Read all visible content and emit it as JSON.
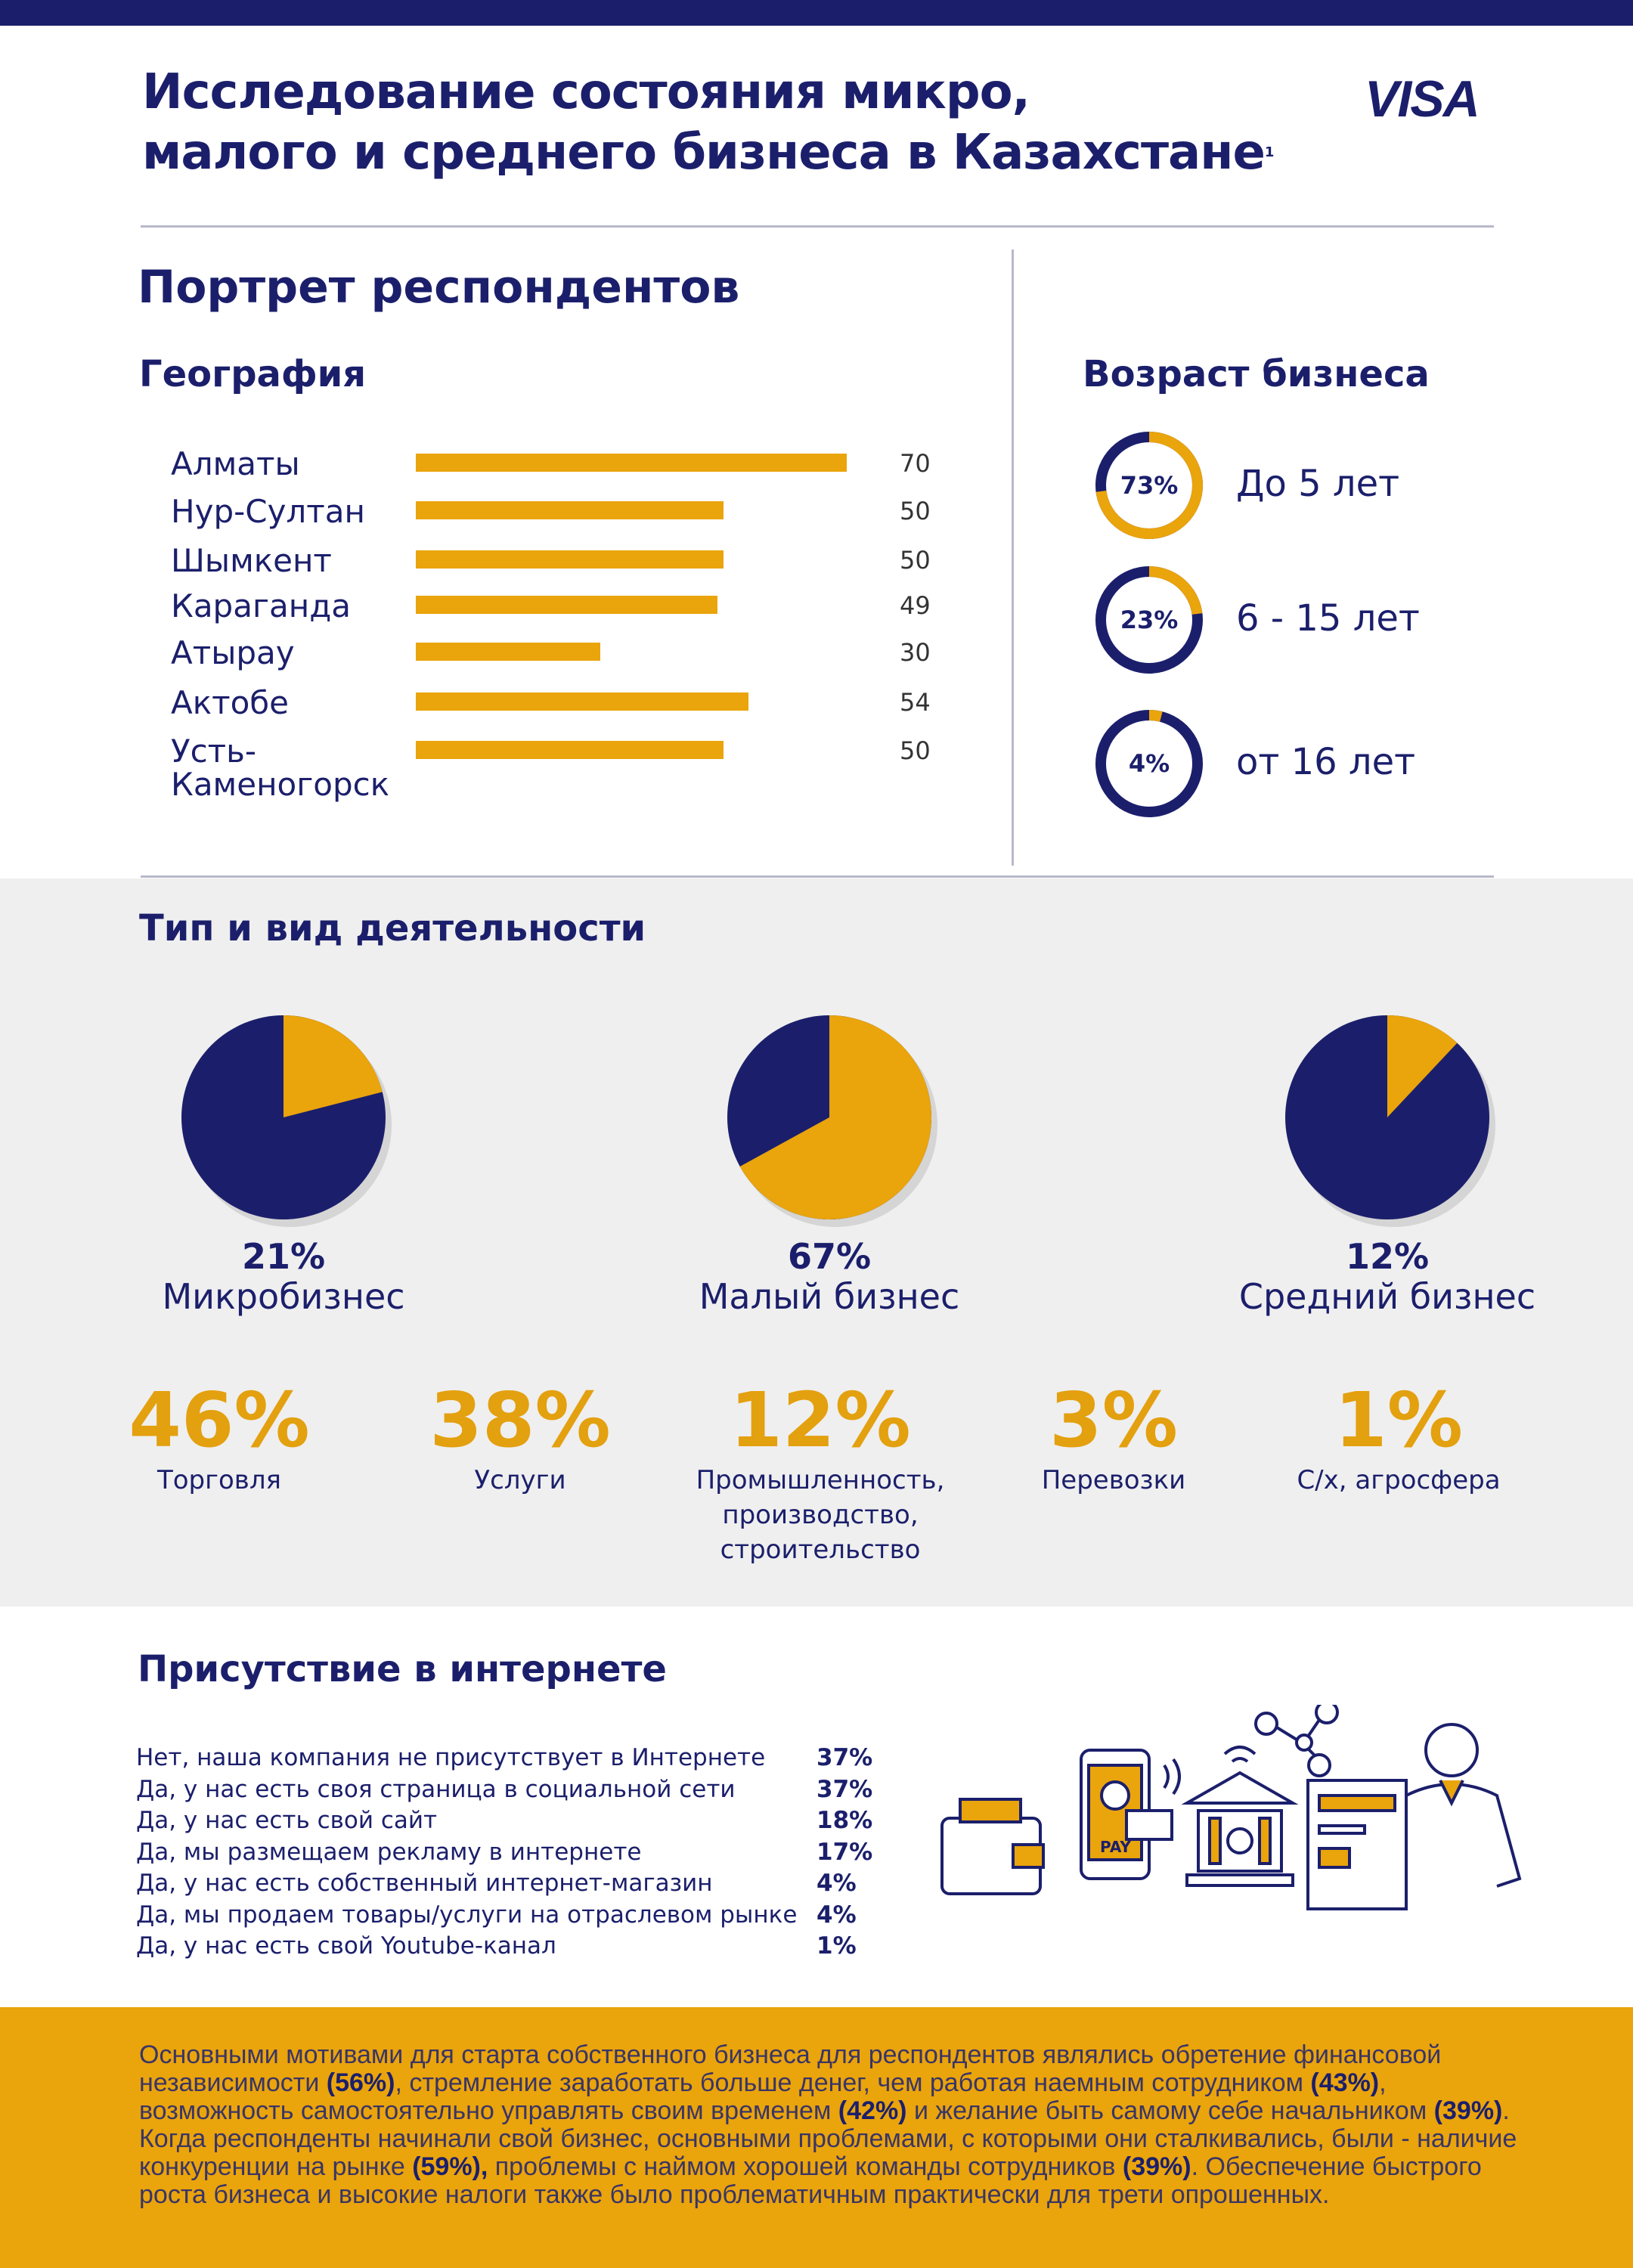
{
  "header": {
    "title_line1": "Исследование состояния микро,",
    "title_line2": "малого и среднего бизнеса в Казахстане",
    "footnote_mark": "1",
    "logo": "VISA"
  },
  "colors": {
    "navy": "#1b1f6b",
    "gold": "#eaa40c",
    "grey_bg": "#efefef"
  },
  "portrait": {
    "title": "Портрет респондентов"
  },
  "chart_data": [
    {
      "type": "bar",
      "title": "География",
      "orientation": "horizontal",
      "categories": [
        "Алматы",
        "Нур-Султан",
        "Шымкент",
        "Караганда",
        "Атырау",
        "Актобе",
        "Усть-Каменогорск"
      ],
      "category_lines": [
        [
          "Алматы"
        ],
        [
          "Нур-Султан"
        ],
        [
          "Шымкент"
        ],
        [
          "Караганда"
        ],
        [
          "Атырау"
        ],
        [
          "Актобе"
        ],
        [
          "Усть-",
          "Каменогорск"
        ]
      ],
      "values": [
        70,
        50,
        50,
        49,
        30,
        54,
        50
      ],
      "xlim": [
        0,
        70
      ]
    },
    {
      "type": "pie",
      "title": "Возраст бизнеса",
      "style": "donut",
      "categories": [
        "До 5 лет",
        "6 - 15 лет",
        "от 16 лет"
      ],
      "values": [
        73,
        23,
        4
      ],
      "labels": [
        "73%",
        "23%",
        "4%"
      ]
    },
    {
      "type": "pie",
      "title": "Тип и вид деятельности",
      "categories": [
        "Микробизнес",
        "Малый бизнес",
        "Средний бизнес"
      ],
      "values": [
        21,
        67,
        12
      ],
      "labels": [
        "21%",
        "67%",
        "12%"
      ]
    },
    {
      "type": "table",
      "categories": [
        "Торговля",
        "Услуги",
        "Промышленность, производство, строительство",
        "Перевозки",
        "С/х, агросфера"
      ],
      "category_lines": [
        [
          "Торговля"
        ],
        [
          "Услуги"
        ],
        [
          "Промышленность,",
          "производство,",
          "строительство"
        ],
        [
          "Перевозки"
        ],
        [
          "С/х, агросфера"
        ]
      ],
      "values": [
        46,
        38,
        12,
        3,
        1
      ],
      "labels": [
        "46%",
        "38%",
        "12%",
        "3%",
        "1%"
      ]
    },
    {
      "type": "table",
      "title": "Присутствие в интернете",
      "categories": [
        "Нет, наша компания не присутствует в Интернете",
        "Да, у нас есть своя страница в социальной сети",
        "Да, у нас есть свой сайт",
        "Да, мы размещаем рекламу в интернете",
        "Да, у нас есть собственный интернет-магазин",
        "Да, мы продаем товары/услуги на отраслевом рынке",
        "Да, у нас есть свой Youtube-канал"
      ],
      "values": [
        37,
        37,
        18,
        17,
        4,
        4,
        1
      ],
      "labels": [
        "37%",
        "37%",
        "18%",
        "17%",
        "4%",
        "4%",
        "1%"
      ]
    }
  ],
  "illustration": {
    "icons": [
      "wallet-icon",
      "smartphone-payment-icon",
      "bank-icon",
      "money-network-icon",
      "businessman-icon"
    ],
    "phone_text": "PAY"
  },
  "footer": {
    "parts": [
      {
        "t": "Основными мотивами для старта собственного бизнеса для респондентов являлись обретение финансовой независимости "
      },
      {
        "b": "(56%)"
      },
      {
        "t": ", стремление заработать больше денег, чем работая наемным сотрудником "
      },
      {
        "b": "(43%)"
      },
      {
        "t": ", возможность самостоятельно управлять своим временем "
      },
      {
        "b": "(42%)"
      },
      {
        "t": " и желание быть самому себе начальником "
      },
      {
        "b": "(39%)"
      },
      {
        "t": ". Когда респонденты начинали свой бизнес, основными проблемами, с которыми они сталкивались, были - наличие конкуренции на рынке "
      },
      {
        "b": "(59%),"
      },
      {
        "t": " проблемы с наймом хорошей команды сотрудников "
      },
      {
        "b": "(39%)"
      },
      {
        "t": ". Обеспечение быстрого роста бизнеса и высокие налоги также было проблематичным практически для трети опрошенных."
      }
    ]
  }
}
